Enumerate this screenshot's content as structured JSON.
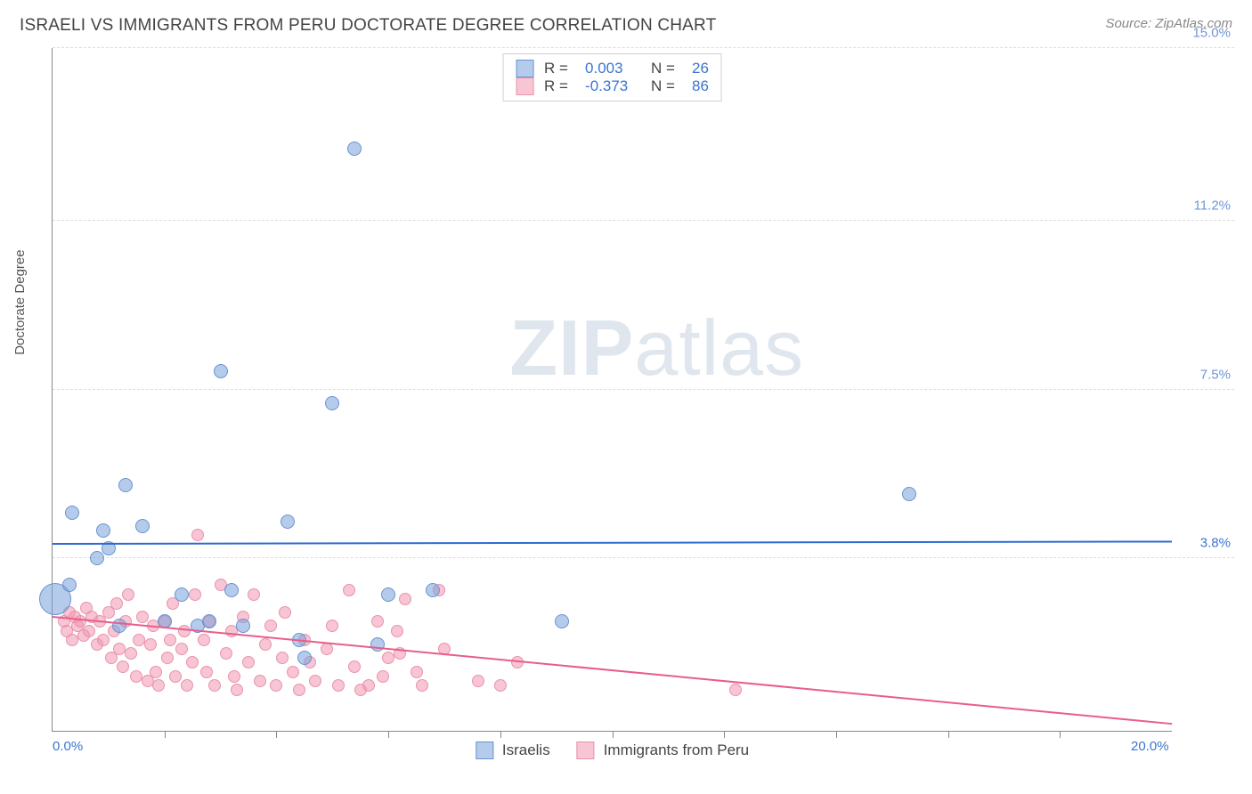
{
  "header": {
    "title": "ISRAELI VS IMMIGRANTS FROM PERU DOCTORATE DEGREE CORRELATION CHART",
    "source": "Source: ZipAtlas.com"
  },
  "ylabel": "Doctorate Degree",
  "watermark": {
    "bold": "ZIP",
    "rest": "atlas"
  },
  "axes": {
    "xmin": 0.0,
    "xmax": 20.0,
    "ymin": 0.0,
    "ymax": 15.0,
    "yticks": [
      {
        "v": 3.8,
        "label": "3.8%",
        "color": "#3b74d1"
      },
      {
        "v": 7.5,
        "label": "7.5%",
        "color": "#6f95d8"
      },
      {
        "v": 11.2,
        "label": "11.2%",
        "color": "#6f95d8"
      },
      {
        "v": 15.0,
        "label": "15.0%",
        "color": "#6f95d8"
      }
    ],
    "xticks": [
      {
        "v": 0.0,
        "label": "0.0%",
        "color": "#3b74d1"
      },
      {
        "v": 20.0,
        "label": "20.0%",
        "color": "#3b74d1"
      }
    ],
    "xtick_majors": [
      2,
      4,
      6,
      8,
      10,
      12,
      14,
      16,
      18
    ],
    "grid_color": "#dcdcdc"
  },
  "series": {
    "blue": {
      "name": "Israelis",
      "fill": "rgba(120,160,220,0.55)",
      "stroke": "#6a93cf",
      "trend_color": "#2e6bd0",
      "trend": {
        "y_at_xmin": 4.1,
        "y_at_xmax": 4.15
      },
      "R": "0.003",
      "N": "26",
      "points": [
        {
          "x": 0.05,
          "y": 2.9,
          "r": 18
        },
        {
          "x": 0.3,
          "y": 3.2,
          "r": 8
        },
        {
          "x": 0.35,
          "y": 4.8,
          "r": 8
        },
        {
          "x": 0.8,
          "y": 3.8,
          "r": 8
        },
        {
          "x": 0.9,
          "y": 4.4,
          "r": 8
        },
        {
          "x": 1.0,
          "y": 4.0,
          "r": 8
        },
        {
          "x": 1.2,
          "y": 2.3,
          "r": 8
        },
        {
          "x": 1.3,
          "y": 5.4,
          "r": 8
        },
        {
          "x": 1.6,
          "y": 4.5,
          "r": 8
        },
        {
          "x": 2.0,
          "y": 2.4,
          "r": 8
        },
        {
          "x": 2.3,
          "y": 3.0,
          "r": 8
        },
        {
          "x": 2.6,
          "y": 2.3,
          "r": 8
        },
        {
          "x": 2.8,
          "y": 2.4,
          "r": 8
        },
        {
          "x": 3.0,
          "y": 7.9,
          "r": 8
        },
        {
          "x": 3.2,
          "y": 3.1,
          "r": 8
        },
        {
          "x": 3.4,
          "y": 2.3,
          "r": 8
        },
        {
          "x": 4.2,
          "y": 4.6,
          "r": 8
        },
        {
          "x": 4.4,
          "y": 2.0,
          "r": 8
        },
        {
          "x": 5.0,
          "y": 7.2,
          "r": 8
        },
        {
          "x": 5.4,
          "y": 12.8,
          "r": 8
        },
        {
          "x": 5.8,
          "y": 1.9,
          "r": 8
        },
        {
          "x": 6.0,
          "y": 3.0,
          "r": 8
        },
        {
          "x": 6.8,
          "y": 3.1,
          "r": 8
        },
        {
          "x": 9.1,
          "y": 2.4,
          "r": 8
        },
        {
          "x": 15.3,
          "y": 5.2,
          "r": 8
        },
        {
          "x": 4.5,
          "y": 1.6,
          "r": 8
        }
      ]
    },
    "pink": {
      "name": "Immigrants from Peru",
      "fill": "rgba(240,150,175,0.55)",
      "stroke": "#e993ac",
      "trend_color": "#e85d8a",
      "trend": {
        "y_at_xmin": 2.5,
        "y_at_xmax": 0.15
      },
      "R": "-0.373",
      "N": "86",
      "points": [
        {
          "x": 0.2,
          "y": 2.4,
          "r": 7
        },
        {
          "x": 0.25,
          "y": 2.2,
          "r": 7
        },
        {
          "x": 0.3,
          "y": 2.6,
          "r": 7
        },
        {
          "x": 0.35,
          "y": 2.0,
          "r": 7
        },
        {
          "x": 0.4,
          "y": 2.5,
          "r": 7
        },
        {
          "x": 0.45,
          "y": 2.3,
          "r": 7
        },
        {
          "x": 0.5,
          "y": 2.4,
          "r": 7
        },
        {
          "x": 0.55,
          "y": 2.1,
          "r": 7
        },
        {
          "x": 0.6,
          "y": 2.7,
          "r": 7
        },
        {
          "x": 0.65,
          "y": 2.2,
          "r": 7
        },
        {
          "x": 0.7,
          "y": 2.5,
          "r": 7
        },
        {
          "x": 0.8,
          "y": 1.9,
          "r": 7
        },
        {
          "x": 0.85,
          "y": 2.4,
          "r": 7
        },
        {
          "x": 0.9,
          "y": 2.0,
          "r": 7
        },
        {
          "x": 1.0,
          "y": 2.6,
          "r": 7
        },
        {
          "x": 1.05,
          "y": 1.6,
          "r": 7
        },
        {
          "x": 1.1,
          "y": 2.2,
          "r": 7
        },
        {
          "x": 1.15,
          "y": 2.8,
          "r": 7
        },
        {
          "x": 1.2,
          "y": 1.8,
          "r": 7
        },
        {
          "x": 1.25,
          "y": 1.4,
          "r": 7
        },
        {
          "x": 1.3,
          "y": 2.4,
          "r": 7
        },
        {
          "x": 1.35,
          "y": 3.0,
          "r": 7
        },
        {
          "x": 1.4,
          "y": 1.7,
          "r": 7
        },
        {
          "x": 1.5,
          "y": 1.2,
          "r": 7
        },
        {
          "x": 1.55,
          "y": 2.0,
          "r": 7
        },
        {
          "x": 1.6,
          "y": 2.5,
          "r": 7
        },
        {
          "x": 1.7,
          "y": 1.1,
          "r": 7
        },
        {
          "x": 1.75,
          "y": 1.9,
          "r": 7
        },
        {
          "x": 1.8,
          "y": 2.3,
          "r": 7
        },
        {
          "x": 1.85,
          "y": 1.3,
          "r": 7
        },
        {
          "x": 1.9,
          "y": 1.0,
          "r": 7
        },
        {
          "x": 2.0,
          "y": 2.4,
          "r": 7
        },
        {
          "x": 2.05,
          "y": 1.6,
          "r": 7
        },
        {
          "x": 2.1,
          "y": 2.0,
          "r": 7
        },
        {
          "x": 2.15,
          "y": 2.8,
          "r": 7
        },
        {
          "x": 2.2,
          "y": 1.2,
          "r": 7
        },
        {
          "x": 2.3,
          "y": 1.8,
          "r": 7
        },
        {
          "x": 2.35,
          "y": 2.2,
          "r": 7
        },
        {
          "x": 2.4,
          "y": 1.0,
          "r": 7
        },
        {
          "x": 2.5,
          "y": 1.5,
          "r": 7
        },
        {
          "x": 2.55,
          "y": 3.0,
          "r": 7
        },
        {
          "x": 2.6,
          "y": 4.3,
          "r": 7
        },
        {
          "x": 2.7,
          "y": 2.0,
          "r": 7
        },
        {
          "x": 2.75,
          "y": 1.3,
          "r": 7
        },
        {
          "x": 2.8,
          "y": 2.4,
          "r": 7
        },
        {
          "x": 2.9,
          "y": 1.0,
          "r": 7
        },
        {
          "x": 3.0,
          "y": 3.2,
          "r": 7
        },
        {
          "x": 3.1,
          "y": 1.7,
          "r": 7
        },
        {
          "x": 3.2,
          "y": 2.2,
          "r": 7
        },
        {
          "x": 3.25,
          "y": 1.2,
          "r": 7
        },
        {
          "x": 3.3,
          "y": 0.9,
          "r": 7
        },
        {
          "x": 3.4,
          "y": 2.5,
          "r": 7
        },
        {
          "x": 3.5,
          "y": 1.5,
          "r": 7
        },
        {
          "x": 3.6,
          "y": 3.0,
          "r": 7
        },
        {
          "x": 3.7,
          "y": 1.1,
          "r": 7
        },
        {
          "x": 3.8,
          "y": 1.9,
          "r": 7
        },
        {
          "x": 3.9,
          "y": 2.3,
          "r": 7
        },
        {
          "x": 4.0,
          "y": 1.0,
          "r": 7
        },
        {
          "x": 4.1,
          "y": 1.6,
          "r": 7
        },
        {
          "x": 4.15,
          "y": 2.6,
          "r": 7
        },
        {
          "x": 4.3,
          "y": 1.3,
          "r": 7
        },
        {
          "x": 4.4,
          "y": 0.9,
          "r": 7
        },
        {
          "x": 4.5,
          "y": 2.0,
          "r": 7
        },
        {
          "x": 4.6,
          "y": 1.5,
          "r": 7
        },
        {
          "x": 4.7,
          "y": 1.1,
          "r": 7
        },
        {
          "x": 4.9,
          "y": 1.8,
          "r": 7
        },
        {
          "x": 5.0,
          "y": 2.3,
          "r": 7
        },
        {
          "x": 5.1,
          "y": 1.0,
          "r": 7
        },
        {
          "x": 5.3,
          "y": 3.1,
          "r": 7
        },
        {
          "x": 5.4,
          "y": 1.4,
          "r": 7
        },
        {
          "x": 5.5,
          "y": 0.9,
          "r": 7
        },
        {
          "x": 5.65,
          "y": 1.0,
          "r": 7
        },
        {
          "x": 5.8,
          "y": 2.4,
          "r": 7
        },
        {
          "x": 5.9,
          "y": 1.2,
          "r": 7
        },
        {
          "x": 6.0,
          "y": 1.6,
          "r": 7
        },
        {
          "x": 6.15,
          "y": 2.2,
          "r": 7
        },
        {
          "x": 6.2,
          "y": 1.7,
          "r": 7
        },
        {
          "x": 6.3,
          "y": 2.9,
          "r": 7
        },
        {
          "x": 6.5,
          "y": 1.3,
          "r": 7
        },
        {
          "x": 6.6,
          "y": 1.0,
          "r": 7
        },
        {
          "x": 6.9,
          "y": 3.1,
          "r": 7
        },
        {
          "x": 7.0,
          "y": 1.8,
          "r": 7
        },
        {
          "x": 7.6,
          "y": 1.1,
          "r": 7
        },
        {
          "x": 8.0,
          "y": 1.0,
          "r": 7
        },
        {
          "x": 8.3,
          "y": 1.5,
          "r": 7
        },
        {
          "x": 12.2,
          "y": 0.9,
          "r": 7
        }
      ]
    }
  },
  "legend_top": {
    "value_color": "#3b74d1"
  },
  "legend_bottom": {
    "items": [
      {
        "key": "blue"
      },
      {
        "key": "pink"
      }
    ]
  }
}
